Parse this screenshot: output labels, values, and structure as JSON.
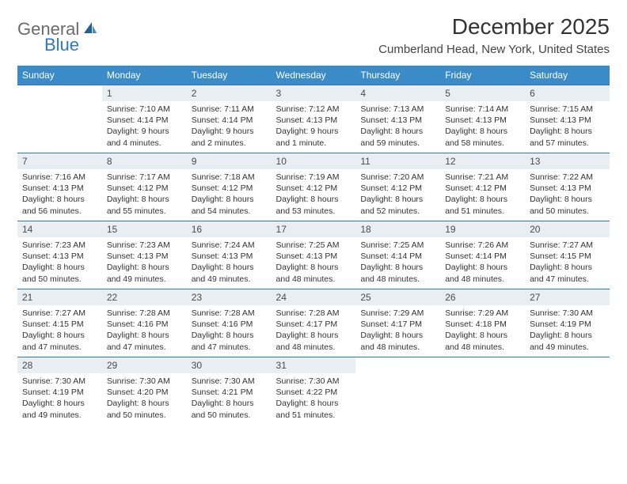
{
  "logo": {
    "text_general": "General",
    "text_blue": "Blue"
  },
  "title": "December 2025",
  "location": "Cumberland Head, New York, United States",
  "colors": {
    "header_bg": "#3b8bc9",
    "daynum_bg": "#e9eef2",
    "row_border": "#2f78bd",
    "logo_gray": "#6b6b6b",
    "logo_blue": "#2f78bd"
  },
  "days_of_week": [
    "Sunday",
    "Monday",
    "Tuesday",
    "Wednesday",
    "Thursday",
    "Friday",
    "Saturday"
  ],
  "weeks": [
    [
      {
        "n": "",
        "sunrise": "",
        "sunset": "",
        "daylight": ""
      },
      {
        "n": "1",
        "sunrise": "Sunrise: 7:10 AM",
        "sunset": "Sunset: 4:14 PM",
        "daylight": "Daylight: 9 hours and 4 minutes."
      },
      {
        "n": "2",
        "sunrise": "Sunrise: 7:11 AM",
        "sunset": "Sunset: 4:14 PM",
        "daylight": "Daylight: 9 hours and 2 minutes."
      },
      {
        "n": "3",
        "sunrise": "Sunrise: 7:12 AM",
        "sunset": "Sunset: 4:13 PM",
        "daylight": "Daylight: 9 hours and 1 minute."
      },
      {
        "n": "4",
        "sunrise": "Sunrise: 7:13 AM",
        "sunset": "Sunset: 4:13 PM",
        "daylight": "Daylight: 8 hours and 59 minutes."
      },
      {
        "n": "5",
        "sunrise": "Sunrise: 7:14 AM",
        "sunset": "Sunset: 4:13 PM",
        "daylight": "Daylight: 8 hours and 58 minutes."
      },
      {
        "n": "6",
        "sunrise": "Sunrise: 7:15 AM",
        "sunset": "Sunset: 4:13 PM",
        "daylight": "Daylight: 8 hours and 57 minutes."
      }
    ],
    [
      {
        "n": "7",
        "sunrise": "Sunrise: 7:16 AM",
        "sunset": "Sunset: 4:13 PM",
        "daylight": "Daylight: 8 hours and 56 minutes."
      },
      {
        "n": "8",
        "sunrise": "Sunrise: 7:17 AM",
        "sunset": "Sunset: 4:12 PM",
        "daylight": "Daylight: 8 hours and 55 minutes."
      },
      {
        "n": "9",
        "sunrise": "Sunrise: 7:18 AM",
        "sunset": "Sunset: 4:12 PM",
        "daylight": "Daylight: 8 hours and 54 minutes."
      },
      {
        "n": "10",
        "sunrise": "Sunrise: 7:19 AM",
        "sunset": "Sunset: 4:12 PM",
        "daylight": "Daylight: 8 hours and 53 minutes."
      },
      {
        "n": "11",
        "sunrise": "Sunrise: 7:20 AM",
        "sunset": "Sunset: 4:12 PM",
        "daylight": "Daylight: 8 hours and 52 minutes."
      },
      {
        "n": "12",
        "sunrise": "Sunrise: 7:21 AM",
        "sunset": "Sunset: 4:12 PM",
        "daylight": "Daylight: 8 hours and 51 minutes."
      },
      {
        "n": "13",
        "sunrise": "Sunrise: 7:22 AM",
        "sunset": "Sunset: 4:13 PM",
        "daylight": "Daylight: 8 hours and 50 minutes."
      }
    ],
    [
      {
        "n": "14",
        "sunrise": "Sunrise: 7:23 AM",
        "sunset": "Sunset: 4:13 PM",
        "daylight": "Daylight: 8 hours and 50 minutes."
      },
      {
        "n": "15",
        "sunrise": "Sunrise: 7:23 AM",
        "sunset": "Sunset: 4:13 PM",
        "daylight": "Daylight: 8 hours and 49 minutes."
      },
      {
        "n": "16",
        "sunrise": "Sunrise: 7:24 AM",
        "sunset": "Sunset: 4:13 PM",
        "daylight": "Daylight: 8 hours and 49 minutes."
      },
      {
        "n": "17",
        "sunrise": "Sunrise: 7:25 AM",
        "sunset": "Sunset: 4:13 PM",
        "daylight": "Daylight: 8 hours and 48 minutes."
      },
      {
        "n": "18",
        "sunrise": "Sunrise: 7:25 AM",
        "sunset": "Sunset: 4:14 PM",
        "daylight": "Daylight: 8 hours and 48 minutes."
      },
      {
        "n": "19",
        "sunrise": "Sunrise: 7:26 AM",
        "sunset": "Sunset: 4:14 PM",
        "daylight": "Daylight: 8 hours and 48 minutes."
      },
      {
        "n": "20",
        "sunrise": "Sunrise: 7:27 AM",
        "sunset": "Sunset: 4:15 PM",
        "daylight": "Daylight: 8 hours and 47 minutes."
      }
    ],
    [
      {
        "n": "21",
        "sunrise": "Sunrise: 7:27 AM",
        "sunset": "Sunset: 4:15 PM",
        "daylight": "Daylight: 8 hours and 47 minutes."
      },
      {
        "n": "22",
        "sunrise": "Sunrise: 7:28 AM",
        "sunset": "Sunset: 4:16 PM",
        "daylight": "Daylight: 8 hours and 47 minutes."
      },
      {
        "n": "23",
        "sunrise": "Sunrise: 7:28 AM",
        "sunset": "Sunset: 4:16 PM",
        "daylight": "Daylight: 8 hours and 47 minutes."
      },
      {
        "n": "24",
        "sunrise": "Sunrise: 7:28 AM",
        "sunset": "Sunset: 4:17 PM",
        "daylight": "Daylight: 8 hours and 48 minutes."
      },
      {
        "n": "25",
        "sunrise": "Sunrise: 7:29 AM",
        "sunset": "Sunset: 4:17 PM",
        "daylight": "Daylight: 8 hours and 48 minutes."
      },
      {
        "n": "26",
        "sunrise": "Sunrise: 7:29 AM",
        "sunset": "Sunset: 4:18 PM",
        "daylight": "Daylight: 8 hours and 48 minutes."
      },
      {
        "n": "27",
        "sunrise": "Sunrise: 7:30 AM",
        "sunset": "Sunset: 4:19 PM",
        "daylight": "Daylight: 8 hours and 49 minutes."
      }
    ],
    [
      {
        "n": "28",
        "sunrise": "Sunrise: 7:30 AM",
        "sunset": "Sunset: 4:19 PM",
        "daylight": "Daylight: 8 hours and 49 minutes."
      },
      {
        "n": "29",
        "sunrise": "Sunrise: 7:30 AM",
        "sunset": "Sunset: 4:20 PM",
        "daylight": "Daylight: 8 hours and 50 minutes."
      },
      {
        "n": "30",
        "sunrise": "Sunrise: 7:30 AM",
        "sunset": "Sunset: 4:21 PM",
        "daylight": "Daylight: 8 hours and 50 minutes."
      },
      {
        "n": "31",
        "sunrise": "Sunrise: 7:30 AM",
        "sunset": "Sunset: 4:22 PM",
        "daylight": "Daylight: 8 hours and 51 minutes."
      },
      {
        "n": "",
        "sunrise": "",
        "sunset": "",
        "daylight": ""
      },
      {
        "n": "",
        "sunrise": "",
        "sunset": "",
        "daylight": ""
      },
      {
        "n": "",
        "sunrise": "",
        "sunset": "",
        "daylight": ""
      }
    ]
  ]
}
